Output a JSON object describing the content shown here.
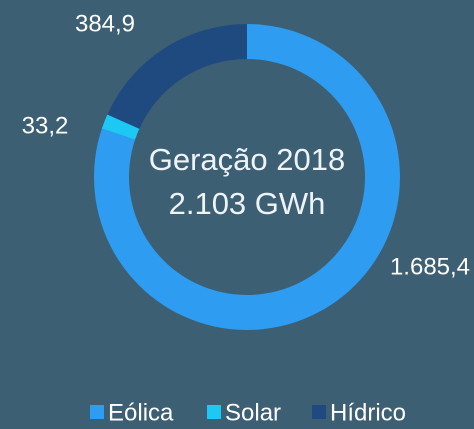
{
  "chart_data": {
    "type": "donut",
    "annotations": [
      "Geração 2018",
      "2.103 GWh"
    ],
    "categories": [
      "Eólica",
      "Solar",
      "Hídrico"
    ],
    "values": [
      1685.4,
      33.2,
      384.9
    ],
    "value_labels": [
      "1.685,4",
      "33,2",
      "384,9"
    ],
    "colors": [
      "#2e9cf0",
      "#1ec8f5",
      "#1f4a80"
    ],
    "legend": "bottom"
  }
}
